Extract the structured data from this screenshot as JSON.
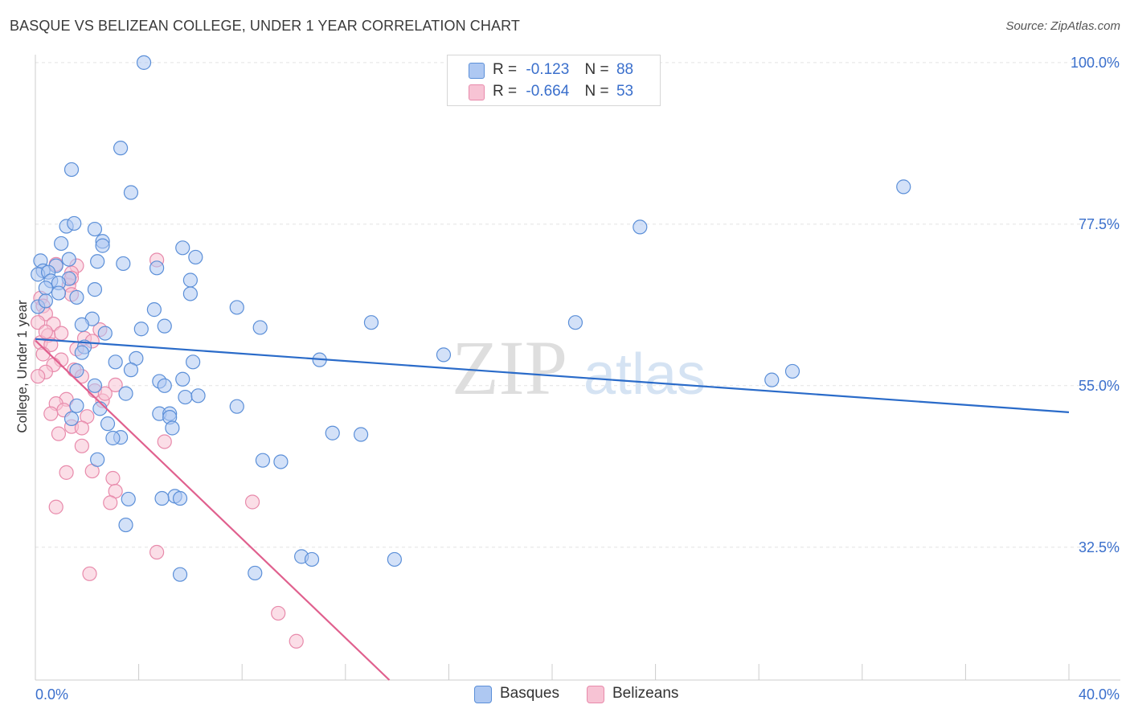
{
  "header": {
    "title": "BASQUE VS BELIZEAN COLLEGE, UNDER 1 YEAR CORRELATION CHART",
    "source": "Source: ZipAtlas.com"
  },
  "watermark": {
    "zip": "ZIP",
    "atlas": "atlas"
  },
  "legend": {
    "r_label": "R =",
    "n_label": "N =",
    "basques": {
      "r": "-0.123",
      "n": "88"
    },
    "belizeans": {
      "r": "-0.664",
      "n": "53"
    }
  },
  "colors": {
    "basques_fill": "#aec8f2",
    "basques_stroke": "#5b8fd8",
    "basques_line": "#2a6bc9",
    "belizeans_fill": "#f7c3d4",
    "belizeans_stroke": "#e88aab",
    "belizeans_line": "#e0608e",
    "axis_text": "#3a6fcc",
    "grid": "#e3e3e3"
  },
  "chart_data": {
    "type": "scatter",
    "title": "BASQUE VS BELIZEAN COLLEGE, UNDER 1 YEAR CORRELATION CHART",
    "xlabel": "",
    "ylabel": "College, Under 1 year",
    "xlim": [
      0,
      40
    ],
    "ylim": [
      14,
      102
    ],
    "x_tick_labels": [
      "0.0%",
      "40.0%"
    ],
    "y_ticks": [
      32.5,
      55.0,
      77.5,
      100.0
    ],
    "y_tick_labels": [
      "32.5%",
      "55.0%",
      "77.5%",
      "100.0%"
    ],
    "grid": true,
    "legend_position": "top-center",
    "series": [
      {
        "name": "Basques",
        "trend": {
          "x": [
            0,
            40
          ],
          "y": [
            61.5,
            51.3
          ]
        },
        "points": [
          [
            4.2,
            100.0
          ],
          [
            3.3,
            88.1
          ],
          [
            1.4,
            85.1
          ],
          [
            3.7,
            81.9
          ],
          [
            1.2,
            77.2
          ],
          [
            1.5,
            77.6
          ],
          [
            2.3,
            76.8
          ],
          [
            2.6,
            75.1
          ],
          [
            2.6,
            74.5
          ],
          [
            1.0,
            74.8
          ],
          [
            5.7,
            74.2
          ],
          [
            6.2,
            72.9
          ],
          [
            2.4,
            72.3
          ],
          [
            3.4,
            72.0
          ],
          [
            1.3,
            72.6
          ],
          [
            0.2,
            72.4
          ],
          [
            0.8,
            71.7
          ],
          [
            4.7,
            71.4
          ],
          [
            0.3,
            71.0
          ],
          [
            0.1,
            70.5
          ],
          [
            0.5,
            70.8
          ],
          [
            1.3,
            69.9
          ],
          [
            0.6,
            69.6
          ],
          [
            0.9,
            69.3
          ],
          [
            0.4,
            68.6
          ],
          [
            2.3,
            68.4
          ],
          [
            0.9,
            67.9
          ],
          [
            1.6,
            67.3
          ],
          [
            6.0,
            67.8
          ],
          [
            7.8,
            65.9
          ],
          [
            4.6,
            65.6
          ],
          [
            2.2,
            64.3
          ],
          [
            0.1,
            66.0
          ],
          [
            0.4,
            66.8
          ],
          [
            2.7,
            62.3
          ],
          [
            5.0,
            63.3
          ],
          [
            1.8,
            63.5
          ],
          [
            4.1,
            62.9
          ],
          [
            8.7,
            63.1
          ],
          [
            13.0,
            63.8
          ],
          [
            20.9,
            63.8
          ],
          [
            1.9,
            60.4
          ],
          [
            1.8,
            59.6
          ],
          [
            3.1,
            58.3
          ],
          [
            3.9,
            58.8
          ],
          [
            6.1,
            58.3
          ],
          [
            11.0,
            58.6
          ],
          [
            15.8,
            59.3
          ],
          [
            1.6,
            57.1
          ],
          [
            3.7,
            57.2
          ],
          [
            4.8,
            55.6
          ],
          [
            5.7,
            55.9
          ],
          [
            5.0,
            55.0
          ],
          [
            3.5,
            53.9
          ],
          [
            2.3,
            55.0
          ],
          [
            1.6,
            52.2
          ],
          [
            2.5,
            51.8
          ],
          [
            4.8,
            51.1
          ],
          [
            5.2,
            51.1
          ],
          [
            5.8,
            53.4
          ],
          [
            6.3,
            53.6
          ],
          [
            7.8,
            52.1
          ],
          [
            5.2,
            50.6
          ],
          [
            5.3,
            49.1
          ],
          [
            1.4,
            50.4
          ],
          [
            2.8,
            49.7
          ],
          [
            3.3,
            47.8
          ],
          [
            3.0,
            47.7
          ],
          [
            11.5,
            48.4
          ],
          [
            12.6,
            48.2
          ],
          [
            2.4,
            44.7
          ],
          [
            8.8,
            44.6
          ],
          [
            9.5,
            44.4
          ],
          [
            5.4,
            39.6
          ],
          [
            5.6,
            39.3
          ],
          [
            4.9,
            39.3
          ],
          [
            3.6,
            39.2
          ],
          [
            3.5,
            35.6
          ],
          [
            10.3,
            31.2
          ],
          [
            10.7,
            30.8
          ],
          [
            5.6,
            28.7
          ],
          [
            8.5,
            28.9
          ],
          [
            13.9,
            30.8
          ],
          [
            23.4,
            77.1
          ],
          [
            33.6,
            82.7
          ],
          [
            29.3,
            57.0
          ],
          [
            28.5,
            55.8
          ],
          [
            6.0,
            69.7
          ]
        ]
      },
      {
        "name": "Belizeans",
        "trend": {
          "x": [
            0,
            13.7
          ],
          "y": [
            61.3,
            14.0
          ]
        },
        "points": [
          [
            4.7,
            72.5
          ],
          [
            1.6,
            71.7
          ],
          [
            0.8,
            71.9
          ],
          [
            1.4,
            70.7
          ],
          [
            1.3,
            69.0
          ],
          [
            1.4,
            70.0
          ],
          [
            0.2,
            67.2
          ],
          [
            0.3,
            66.1
          ],
          [
            0.4,
            65.0
          ],
          [
            0.1,
            63.8
          ],
          [
            0.7,
            63.6
          ],
          [
            2.5,
            62.8
          ],
          [
            1.0,
            62.3
          ],
          [
            0.5,
            62.0
          ],
          [
            1.9,
            61.6
          ],
          [
            0.2,
            61.0
          ],
          [
            0.6,
            60.7
          ],
          [
            1.6,
            60.1
          ],
          [
            2.2,
            61.2
          ],
          [
            0.3,
            59.4
          ],
          [
            1.0,
            58.6
          ],
          [
            0.7,
            57.9
          ],
          [
            1.5,
            57.2
          ],
          [
            0.4,
            56.9
          ],
          [
            0.1,
            56.3
          ],
          [
            1.8,
            56.3
          ],
          [
            3.1,
            55.1
          ],
          [
            2.3,
            54.3
          ],
          [
            1.2,
            53.1
          ],
          [
            2.6,
            52.9
          ],
          [
            0.8,
            52.5
          ],
          [
            1.1,
            51.6
          ],
          [
            0.6,
            51.1
          ],
          [
            2.0,
            50.7
          ],
          [
            1.4,
            49.3
          ],
          [
            1.8,
            49.1
          ],
          [
            0.9,
            48.3
          ],
          [
            5.0,
            47.2
          ],
          [
            1.8,
            46.6
          ],
          [
            1.2,
            42.9
          ],
          [
            2.2,
            43.1
          ],
          [
            3.0,
            42.1
          ],
          [
            3.1,
            40.3
          ],
          [
            0.8,
            38.1
          ],
          [
            2.9,
            38.7
          ],
          [
            8.4,
            38.8
          ],
          [
            4.7,
            31.8
          ],
          [
            2.1,
            28.8
          ],
          [
            9.4,
            23.3
          ],
          [
            10.1,
            19.4
          ],
          [
            2.7,
            53.9
          ],
          [
            0.4,
            62.5
          ],
          [
            1.4,
            67.7
          ]
        ]
      }
    ]
  }
}
